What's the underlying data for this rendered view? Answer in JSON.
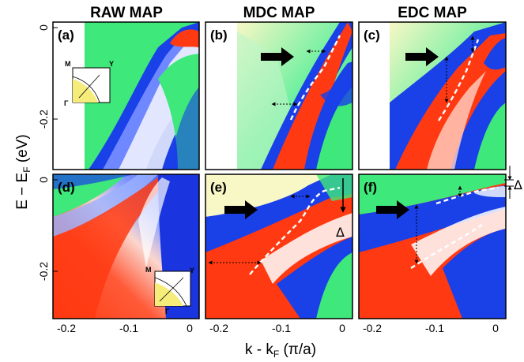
{
  "columns": [
    "RAW MAP",
    "MDC MAP",
    "EDC MAP"
  ],
  "panels": [
    "(a)",
    "(b)",
    "(c)",
    "(d)",
    "(e)",
    "(f)"
  ],
  "axes": {
    "ylabel_main": "E − E",
    "ylabel_sub": "F",
    "ylabel_unit": " (eV)",
    "xlabel_main": "k - k",
    "xlabel_sub": "F",
    "xlabel_unit": " (π/a)",
    "x_ticks": [
      "-0.2",
      "-0.1",
      "0"
    ],
    "y_ticks": [
      "0",
      "-0.2"
    ]
  },
  "inset": {
    "m": "M",
    "y": "Y",
    "gamma": "Γ"
  },
  "gap_symbol": "Δ",
  "colors": {
    "red": "#ff3a12",
    "white": "#ffffff",
    "blue": "#1030e0",
    "green": "#3ee87a",
    "yellow": "#f8f7c6",
    "inset_fill": "#f5ec7a"
  }
}
